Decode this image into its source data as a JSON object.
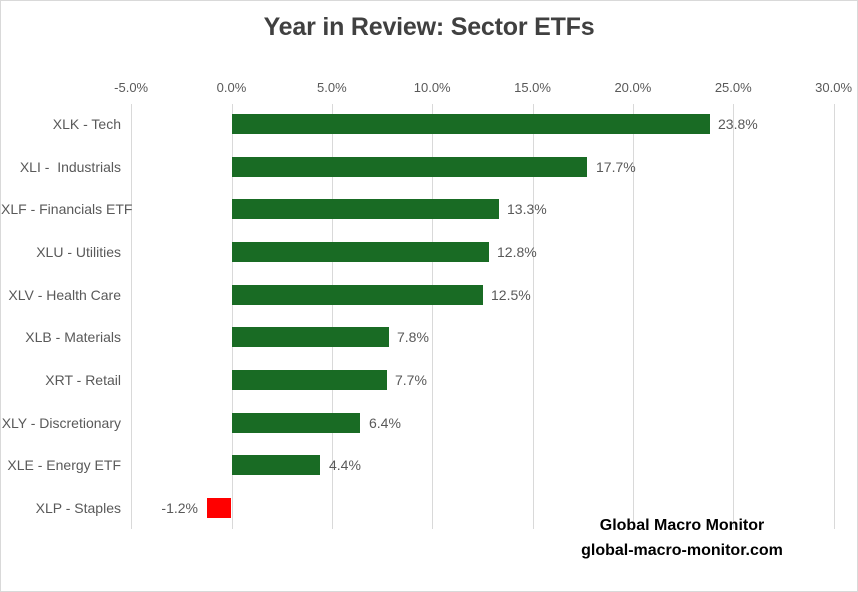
{
  "title": "Year in Review: Sector ETFs",
  "watermark": {
    "line1": "Global Macro Monitor",
    "line2": "global-macro-monitor.com"
  },
  "chart_data": {
    "type": "bar",
    "orientation": "horizontal",
    "title": "Year in Review: Sector ETFs",
    "categories": [
      "XLK - Tech",
      "XLI -  Industrials",
      "XLF - Financials ETF",
      "XLU - Utilities",
      "XLV - Health Care",
      "XLB - Materials",
      "XRT - Retail",
      "XLY - Discretionary",
      "XLE - Energy ETF",
      "XLP - Staples"
    ],
    "values": [
      23.8,
      17.7,
      13.3,
      12.8,
      12.5,
      7.8,
      7.7,
      6.4,
      4.4,
      -1.2
    ],
    "data_labels": [
      "23.8%",
      "17.7%",
      "13.3%",
      "12.8%",
      "12.5%",
      "7.8%",
      "7.7%",
      "6.4%",
      "4.4%",
      "-1.2%"
    ],
    "x_ticks": [
      "-5.0%",
      "0.0%",
      "5.0%",
      "10.0%",
      "15.0%",
      "20.0%",
      "25.0%",
      "30.0%"
    ],
    "x_tick_values": [
      -5,
      0,
      5,
      10,
      15,
      20,
      25,
      30
    ],
    "xlim": [
      -5,
      30
    ],
    "grid": true,
    "tick_position": "top",
    "legend": "none",
    "colors": {
      "positive_bar": "#196B24",
      "negative_bar": "#FF0000",
      "gridline": "#D9D9D9",
      "label_text": "#595959",
      "title_text": "#404040",
      "watermark_text": "#000000",
      "border": "#D9D9D9",
      "background": "#FFFFFF"
    }
  }
}
